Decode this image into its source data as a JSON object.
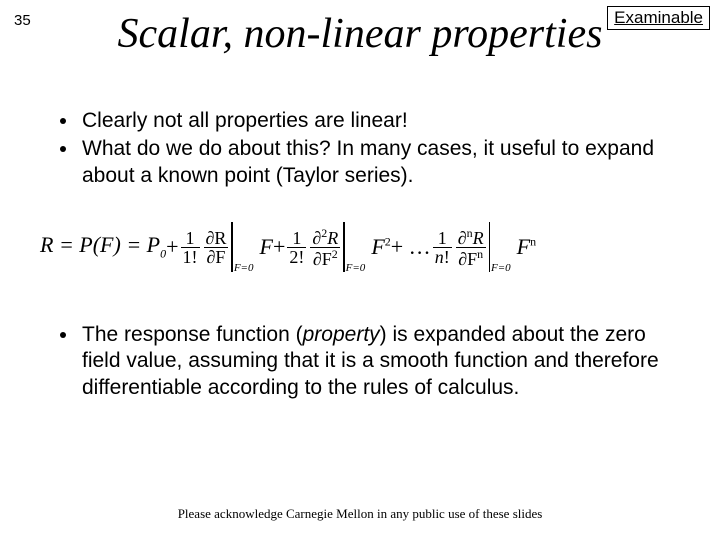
{
  "page_number": "35",
  "badge": "Examinable",
  "title": "Scalar, non-linear properties",
  "bullets_top": [
    "Clearly not all properties are linear!",
    "What do we do about this?  In many cases, it useful to expand about a known point (Taylor series)."
  ],
  "bullet_bottom_pre": "The response function (",
  "bullet_bottom_ital": "property",
  "bullet_bottom_post": ") is expanded about the zero field value, assuming that it is a smooth function and therefore differentiable according to the rules of calculus.",
  "footer": "Please acknowledge Carnegie Mellon in any public use of these slides",
  "eq": {
    "lhs": "R = P(F) = P",
    "P0_sub": "0",
    "plus": " + ",
    "one": "1",
    "fact1": "1!",
    "fact2": "2!",
    "factn": "n!",
    "dR": "∂R",
    "dF": "∂F",
    "d2R": "∂",
    "sq": "2",
    "n": "n",
    "F": "F",
    "Feq0": "F=0",
    "dots": " + … ",
    "F2": "F",
    "Fn": "F"
  },
  "colors": {
    "text": "#000000",
    "bg": "#ffffff"
  },
  "typography": {
    "title_font": "Times New Roman italic",
    "title_size_pt": 42,
    "body_font": "Arial",
    "body_size_pt": 21,
    "footer_font": "Times New Roman",
    "footer_size_pt": 13
  }
}
